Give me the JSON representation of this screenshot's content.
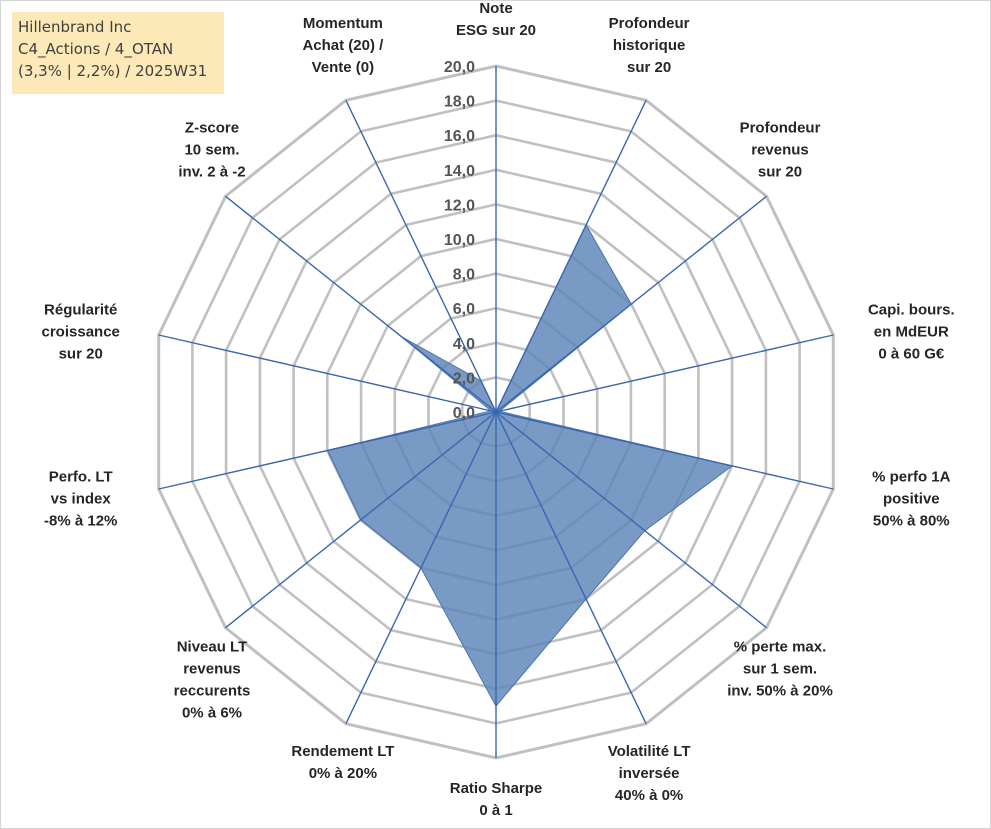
{
  "title_lines": [
    "Hillenbrand Inc",
    "C4_Actions / 4_OTAN",
    "(3,3% | 2,2%) / 2025W31"
  ],
  "colors": {
    "fill": "#5a84b8",
    "spoke": "#3a66b0",
    "ring": "#c0c0c0",
    "title_bg": "#fde9b8"
  },
  "chart_data": {
    "type": "radar",
    "rmin": 0,
    "rmax": 20,
    "tick_values": [
      0,
      2,
      4,
      6,
      8,
      10,
      12,
      14,
      16,
      18,
      20
    ],
    "tick_labels": [
      "0,0",
      "2,0",
      "4,0",
      "6,0",
      "8,0",
      "10,0",
      "12,0",
      "14,0",
      "16,0",
      "18,0",
      "20,0"
    ],
    "axes": [
      {
        "label": [
          "Note",
          "ESG sur 20"
        ],
        "value": 0
      },
      {
        "label": [
          "Profondeur",
          "historique",
          "sur 20"
        ],
        "value": 12
      },
      {
        "label": [
          "Profondeur",
          "revenus",
          "sur 20"
        ],
        "value": 10
      },
      {
        "label": [
          "Capi. bours.",
          "en MdEUR",
          "0 à 60 G€"
        ],
        "value": 0.2
      },
      {
        "label": [
          "% perfo 1A",
          "positive",
          "50% à 80%"
        ],
        "value": 14
      },
      {
        "label": [
          "% perte max.",
          "sur 1 sem.",
          "inv. 50% à 20%"
        ],
        "value": 11
      },
      {
        "label": [
          "Volatilité LT",
          "inversée",
          "40% à 0%"
        ],
        "value": 12
      },
      {
        "label": [
          "Ratio Sharpe",
          "0 à 1"
        ],
        "value": 17
      },
      {
        "label": [
          "Rendement LT",
          "0% à 20%"
        ],
        "value": 10
      },
      {
        "label": [
          "Niveau LT",
          "revenus",
          "reccurents",
          "0% à 6%"
        ],
        "value": 10
      },
      {
        "label": [
          "Perfo. LT",
          "vs index",
          "-8% à 12%"
        ],
        "value": 10
      },
      {
        "label": [
          "Régularité",
          "croissance",
          "sur 20"
        ],
        "value": 0.3
      },
      {
        "label": [
          "Z-score",
          "10 sem.",
          "inv. 2 à -2"
        ],
        "value": 7
      },
      {
        "label": [
          "Momentum",
          "Achat (20) /",
          "Vente (0)"
        ],
        "value": 2
      }
    ]
  }
}
